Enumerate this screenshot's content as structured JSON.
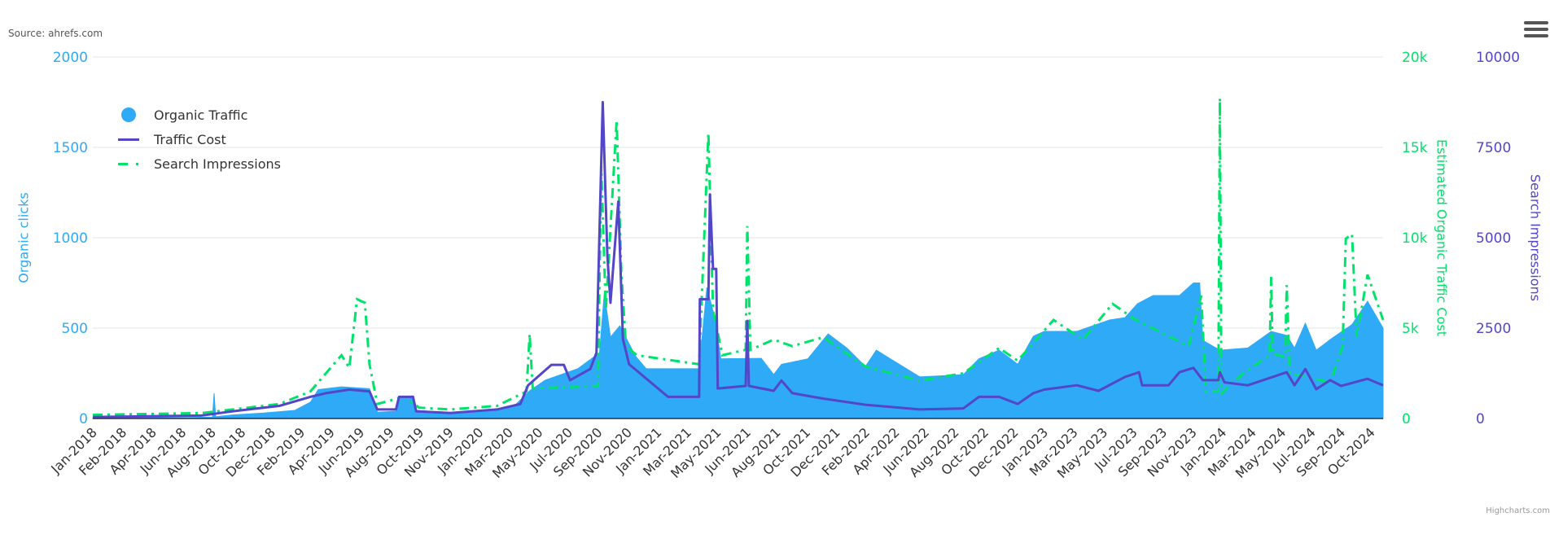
{
  "source_label": "Source: ahrefs.com",
  "credit": "Highcharts.com",
  "menu_icon": "hamburger-menu-icon",
  "legend": [
    {
      "label": "Organic Traffic",
      "color": "#2eaaf7",
      "symbol": "circle"
    },
    {
      "label": "Traffic Cost",
      "color": "#5346c8",
      "symbol": "line"
    },
    {
      "label": "Search Impressions",
      "color": "#00e36a",
      "symbol": "dash-dot"
    }
  ],
  "chart_data": {
    "type": "area",
    "x_unit": "months since Jan-2018",
    "categories": [
      "Jan-2018",
      "Feb-2018",
      "Apr-2018",
      "Jun-2018",
      "Aug-2018",
      "Oct-2018",
      "Dec-2018",
      "Feb-2019",
      "Apr-2019",
      "Jun-2019",
      "Aug-2019",
      "Oct-2019",
      "Nov-2019",
      "Jan-2020",
      "Mar-2020",
      "May-2020",
      "Jul-2020",
      "Sep-2020",
      "Nov-2020",
      "Jan-2021",
      "Mar-2021",
      "May-2021",
      "Jun-2021",
      "Aug-2021",
      "Oct-2021",
      "Dec-2021",
      "Feb-2022",
      "Apr-2022",
      "Jun-2022",
      "Aug-2022",
      "Oct-2022",
      "Dec-2022",
      "Jan-2023",
      "Mar-2023",
      "May-2023",
      "Jul-2023",
      "Sep-2023",
      "Nov-2023",
      "Jan-2024",
      "Mar-2024",
      "May-2024",
      "Jul-2024",
      "Sep-2024",
      "Oct-2024"
    ],
    "xlim": [
      0,
      83
    ],
    "axes": {
      "left": {
        "title": "Organic clicks",
        "ticks": [
          "0",
          "500",
          "1000",
          "1500",
          "2000"
        ],
        "range": [
          0,
          2000
        ],
        "color": "#2eaaf7"
      },
      "right1": {
        "title": "Estimated Organic Traffic Cost",
        "ticks": [
          "0",
          "5k",
          "10k",
          "15k",
          "20k"
        ],
        "range": [
          0,
          20000
        ],
        "color": "#00e36a"
      },
      "right2": {
        "title": "Search Impressions",
        "ticks": [
          "0",
          "2500",
          "5000",
          "7500",
          "10000"
        ],
        "range": [
          0,
          10000
        ],
        "color": "#5346c8"
      }
    },
    "grid": true,
    "legend_position": "top-left",
    "series": [
      {
        "name": "Organic Traffic",
        "type": "area",
        "axis": "left",
        "color": "#2eaaf7",
        "points": [
          [
            0,
            3
          ],
          [
            6,
            5
          ],
          [
            7.7,
            8
          ],
          [
            7.8,
            140
          ],
          [
            7.9,
            10
          ],
          [
            9,
            20
          ],
          [
            11,
            30
          ],
          [
            13,
            45
          ],
          [
            14,
            90
          ],
          [
            14.5,
            160
          ],
          [
            16,
            175
          ],
          [
            17.8,
            165
          ],
          [
            18.3,
            35
          ],
          [
            19.5,
            40
          ],
          [
            19.7,
            120
          ],
          [
            20.6,
            125
          ],
          [
            20.8,
            45
          ],
          [
            23,
            30
          ],
          [
            26,
            50
          ],
          [
            27.2,
            77
          ],
          [
            28.1,
            153
          ],
          [
            29.1,
            212
          ],
          [
            31.2,
            275
          ],
          [
            32.6,
            364
          ],
          [
            32.9,
            693
          ],
          [
            33.3,
            450
          ],
          [
            33.9,
            513
          ],
          [
            34.9,
            346
          ],
          [
            35.6,
            275
          ],
          [
            39,
            275
          ],
          [
            39.5,
            725
          ],
          [
            40,
            560
          ],
          [
            40.4,
            330
          ],
          [
            43,
            333
          ],
          [
            43.8,
            243
          ],
          [
            44.3,
            300
          ],
          [
            46,
            330
          ],
          [
            47.3,
            468
          ],
          [
            48.5,
            390
          ],
          [
            49.7,
            288
          ],
          [
            50.4,
            378
          ],
          [
            51.5,
            320
          ],
          [
            53.2,
            230
          ],
          [
            56,
            243
          ],
          [
            57,
            330
          ],
          [
            58.3,
            378
          ],
          [
            59.5,
            300
          ],
          [
            60.5,
            455
          ],
          [
            61.2,
            482
          ],
          [
            63.3,
            482
          ],
          [
            65.4,
            545
          ],
          [
            66.4,
            558
          ],
          [
            67.2,
            635
          ],
          [
            68.2,
            680
          ],
          [
            69.9,
            680
          ],
          [
            70.8,
            750
          ],
          [
            71.2,
            750
          ],
          [
            71.4,
            432
          ],
          [
            72.5,
            378
          ],
          [
            74.3,
            390
          ],
          [
            75.8,
            482
          ],
          [
            76.8,
            460
          ],
          [
            77.3,
            390
          ],
          [
            78,
            527
          ],
          [
            78.7,
            378
          ],
          [
            79.6,
            437
          ],
          [
            81,
            520
          ],
          [
            82,
            648
          ],
          [
            83,
            500
          ]
        ]
      },
      {
        "name": "Traffic Cost",
        "type": "line",
        "axis": "right2",
        "color": "#5346c8",
        "points": [
          [
            0,
            40
          ],
          [
            7,
            80
          ],
          [
            9,
            200
          ],
          [
            12,
            350
          ],
          [
            14,
            600
          ],
          [
            15,
            700
          ],
          [
            16.5,
            800
          ],
          [
            17.8,
            750
          ],
          [
            18.3,
            250
          ],
          [
            19.5,
            250
          ],
          [
            19.7,
            600
          ],
          [
            20.6,
            600
          ],
          [
            20.8,
            200
          ],
          [
            23,
            150
          ],
          [
            26,
            250
          ],
          [
            27.5,
            400
          ],
          [
            28,
            920
          ],
          [
            29.5,
            1485
          ],
          [
            30.3,
            1485
          ],
          [
            30.7,
            1060
          ],
          [
            32,
            1370
          ],
          [
            32.4,
            1820
          ],
          [
            32.8,
            8750
          ],
          [
            33.1,
            4500
          ],
          [
            33.3,
            3200
          ],
          [
            33.8,
            6000
          ],
          [
            34.1,
            2200
          ],
          [
            34.5,
            1500
          ],
          [
            37,
            600
          ],
          [
            39,
            600
          ],
          [
            39.05,
            3300
          ],
          [
            39.6,
            3300
          ],
          [
            39.7,
            6200
          ],
          [
            39.9,
            4140
          ],
          [
            40.1,
            4140
          ],
          [
            40.2,
            830
          ],
          [
            42,
            900
          ],
          [
            42.1,
            2700
          ],
          [
            42.2,
            900
          ],
          [
            43.8,
            765
          ],
          [
            44.3,
            1050
          ],
          [
            45,
            700
          ],
          [
            47,
            550
          ],
          [
            49.7,
            380
          ],
          [
            53.2,
            250
          ],
          [
            56,
            280
          ],
          [
            57,
            600
          ],
          [
            58.3,
            600
          ],
          [
            59.5,
            400
          ],
          [
            60.5,
            700
          ],
          [
            61.2,
            800
          ],
          [
            63.3,
            920
          ],
          [
            64.7,
            765
          ],
          [
            66.4,
            1150
          ],
          [
            67.3,
            1280
          ],
          [
            67.5,
            920
          ],
          [
            69.2,
            920
          ],
          [
            69.9,
            1280
          ],
          [
            70.8,
            1400
          ],
          [
            71.4,
            1060
          ],
          [
            72.4,
            1060
          ],
          [
            72.5,
            1280
          ],
          [
            72.8,
            1000
          ],
          [
            74.3,
            920
          ],
          [
            76.8,
            1280
          ],
          [
            77.3,
            920
          ],
          [
            78,
            1370
          ],
          [
            78.7,
            810
          ],
          [
            79.6,
            1060
          ],
          [
            80.3,
            900
          ],
          [
            82,
            1100
          ],
          [
            83,
            920
          ]
        ]
      },
      {
        "name": "Search Impressions",
        "type": "line",
        "dash": "dash-dot",
        "axis": "right1",
        "color": "#00e36a",
        "points": [
          [
            0,
            200
          ],
          [
            7,
            300
          ],
          [
            9,
            500
          ],
          [
            12,
            800
          ],
          [
            14,
            1500
          ],
          [
            15,
            2500
          ],
          [
            16,
            3500
          ],
          [
            16.5,
            2800
          ],
          [
            17,
            6600
          ],
          [
            17.5,
            6400
          ],
          [
            17.8,
            3000
          ],
          [
            18.3,
            800
          ],
          [
            20,
            1200
          ],
          [
            21,
            600
          ],
          [
            23,
            500
          ],
          [
            26,
            700
          ],
          [
            27.9,
            1500
          ],
          [
            28.1,
            4680
          ],
          [
            28.3,
            1670
          ],
          [
            32.5,
            1800
          ],
          [
            32.7,
            14000
          ],
          [
            33,
            6000
          ],
          [
            33.7,
            16500
          ],
          [
            34,
            8000
          ],
          [
            34.3,
            4000
          ],
          [
            35,
            3500
          ],
          [
            39,
            3000
          ],
          [
            39.6,
            15800
          ],
          [
            39.9,
            6000
          ],
          [
            40.5,
            3500
          ],
          [
            42,
            3800
          ],
          [
            42.1,
            10650
          ],
          [
            42.3,
            3800
          ],
          [
            43.8,
            4365
          ],
          [
            45,
            4000
          ],
          [
            47,
            4500
          ],
          [
            49.7,
            2880
          ],
          [
            53.2,
            2100
          ],
          [
            56,
            2500
          ],
          [
            58.3,
            3900
          ],
          [
            59.5,
            3200
          ],
          [
            61.8,
            5450
          ],
          [
            63.7,
            4365
          ],
          [
            65.6,
            6345
          ],
          [
            67,
            5500
          ],
          [
            70.5,
            4000
          ],
          [
            71.3,
            6800
          ],
          [
            71.6,
            1500
          ],
          [
            72.4,
            1500
          ],
          [
            72.5,
            17730
          ],
          [
            72.6,
            1400
          ],
          [
            74,
            2500
          ],
          [
            75.7,
            3500
          ],
          [
            75.8,
            7830
          ],
          [
            75.9,
            3600
          ],
          [
            76.7,
            3400
          ],
          [
            76.8,
            7380
          ],
          [
            77,
            2500
          ],
          [
            79.6,
            2000
          ],
          [
            80.4,
            4000
          ],
          [
            80.6,
            9945
          ],
          [
            81,
            10200
          ],
          [
            81.3,
            4500
          ],
          [
            82,
            7965
          ],
          [
            83,
            5450
          ]
        ]
      }
    ]
  }
}
